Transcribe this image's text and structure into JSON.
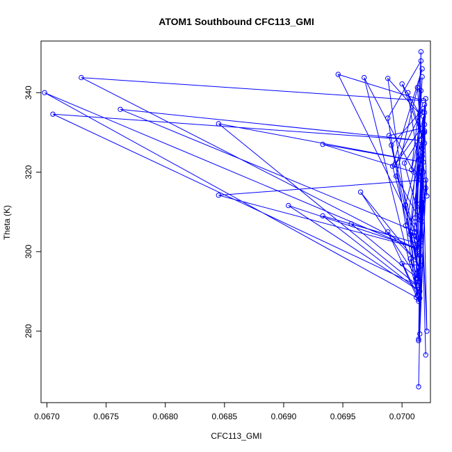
{
  "chart_data": {
    "type": "line",
    "title": "ATOM1 Southbound CFC113_GMI",
    "xlabel": "CFC113_GMI",
    "ylabel": "Theta (K)",
    "xlim": [
      0.06695,
      0.07024
    ],
    "ylim": [
      262,
      353
    ],
    "xticks": [
      "0.0670",
      "0.0675",
      "0.0680",
      "0.0685",
      "0.0690",
      "0.0695",
      "0.0700"
    ],
    "yticks": [
      "280",
      "300",
      "320",
      "340"
    ],
    "grid": false,
    "colors": {
      "series": "#0000ff",
      "axis": "#000000",
      "background": "#ffffff"
    },
    "series": [
      {
        "points": [
          [
            0.07014,
            266.0
          ],
          [
            0.07017,
            312.5
          ],
          [
            0.07014,
            296.2
          ],
          [
            0.07012,
            288.5
          ],
          [
            0.06698,
            340.0
          ],
          [
            0.07013,
            300.5
          ],
          [
            0.06729,
            343.8
          ],
          [
            0.07018,
            338.0
          ],
          [
            0.06946,
            344.6
          ],
          [
            0.07012,
            305.0
          ],
          [
            0.06762,
            335.8
          ],
          [
            0.07015,
            328.0
          ],
          [
            0.06705,
            334.6
          ],
          [
            0.07013,
            291.5
          ],
          [
            0.06845,
            332.2
          ],
          [
            0.07018,
            322.5
          ],
          [
            0.06933,
            327.0
          ],
          [
            0.0701,
            320.0
          ],
          [
            0.06968,
            343.8
          ],
          [
            0.07014,
            288.0
          ],
          [
            0.06988,
            343.6
          ],
          [
            0.07015,
            334.6
          ],
          [
            0.07,
            342.2
          ],
          [
            0.07019,
            327.3
          ],
          [
            0.07005,
            340.0
          ],
          [
            0.07016,
            318.0
          ],
          [
            0.06845,
            314.2
          ],
          [
            0.07012,
            301.0
          ],
          [
            0.06904,
            311.6
          ],
          [
            0.07015,
            290.0
          ],
          [
            0.06933,
            309.0
          ],
          [
            0.07014,
            302.0
          ],
          [
            0.06957,
            307.0
          ],
          [
            0.07013,
            293.3
          ],
          [
            0.06965,
            315.0
          ],
          [
            0.07011,
            298.0
          ],
          [
            0.06988,
            305.0
          ],
          [
            0.07013,
            289.0
          ],
          [
            0.06988,
            333.6
          ],
          [
            0.07016,
            348.0
          ],
          [
            0.07012,
            303.0
          ],
          [
            0.06991,
            326.8
          ],
          [
            0.07018,
            336.0
          ],
          [
            0.06994,
            321.8
          ],
          [
            0.07016,
            331.0
          ],
          [
            0.06989,
            329.2
          ],
          [
            0.07014,
            296.0
          ],
          [
            0.06992,
            321.5
          ],
          [
            0.07017,
            346.0
          ],
          [
            0.06995,
            319.0
          ],
          [
            0.07015,
            308.0
          ],
          [
            0.07002,
            322.3
          ],
          [
            0.07018,
            330.0
          ],
          [
            0.07003,
            311.8
          ],
          [
            0.07016,
            296.5
          ],
          [
            0.07,
            297.0
          ],
          [
            0.07014,
            287.5
          ],
          [
            0.07007,
            304.3
          ],
          [
            0.07017,
            344.0
          ],
          [
            0.07011,
            307.5
          ],
          [
            0.07016,
            301.5
          ],
          [
            0.07003,
            306.5
          ],
          [
            0.07019,
            330.0
          ],
          [
            0.07007,
            305.0
          ],
          [
            0.07015,
            292.5
          ],
          [
            0.07007,
            298.2
          ],
          [
            0.07015,
            288.3
          ],
          [
            0.0701,
            304.0
          ],
          [
            0.07018,
            334.0
          ],
          [
            0.07008,
            320.6
          ],
          [
            0.07016,
            340.5
          ],
          [
            0.07013,
            341.3
          ],
          [
            0.07017,
            326.0
          ],
          [
            0.07011,
            308.5
          ],
          [
            0.07016,
            350.3
          ],
          [
            0.07012,
            293.3
          ],
          [
            0.07016,
            321.0
          ],
          [
            0.07014,
            278.0
          ],
          [
            0.07019,
            335.0
          ],
          [
            0.07015,
            312.0
          ],
          [
            0.07016,
            303.0
          ],
          [
            0.07014,
            294.0
          ],
          [
            0.07019,
            337.0
          ],
          [
            0.07013,
            300.0
          ],
          [
            0.07018,
            313.0
          ],
          [
            0.07015,
            299.0
          ],
          [
            0.0702,
            318.0
          ],
          [
            0.07014,
            292.5
          ],
          [
            0.07019,
            330.4
          ],
          [
            0.07014,
            277.6
          ],
          [
            0.0702,
            316.0
          ],
          [
            0.07015,
            279.3
          ],
          [
            0.07017,
            324.0
          ],
          [
            0.07016,
            311.0
          ],
          [
            0.07019,
            332.0
          ],
          [
            0.07021,
            314.0
          ],
          [
            0.07017,
            325.0
          ],
          [
            0.0702,
            338.5
          ],
          [
            0.07018,
            320.0
          ],
          [
            0.07021,
            280.0
          ],
          [
            0.07017,
            307.6
          ],
          [
            0.0702,
            274.0
          ]
        ]
      }
    ]
  }
}
